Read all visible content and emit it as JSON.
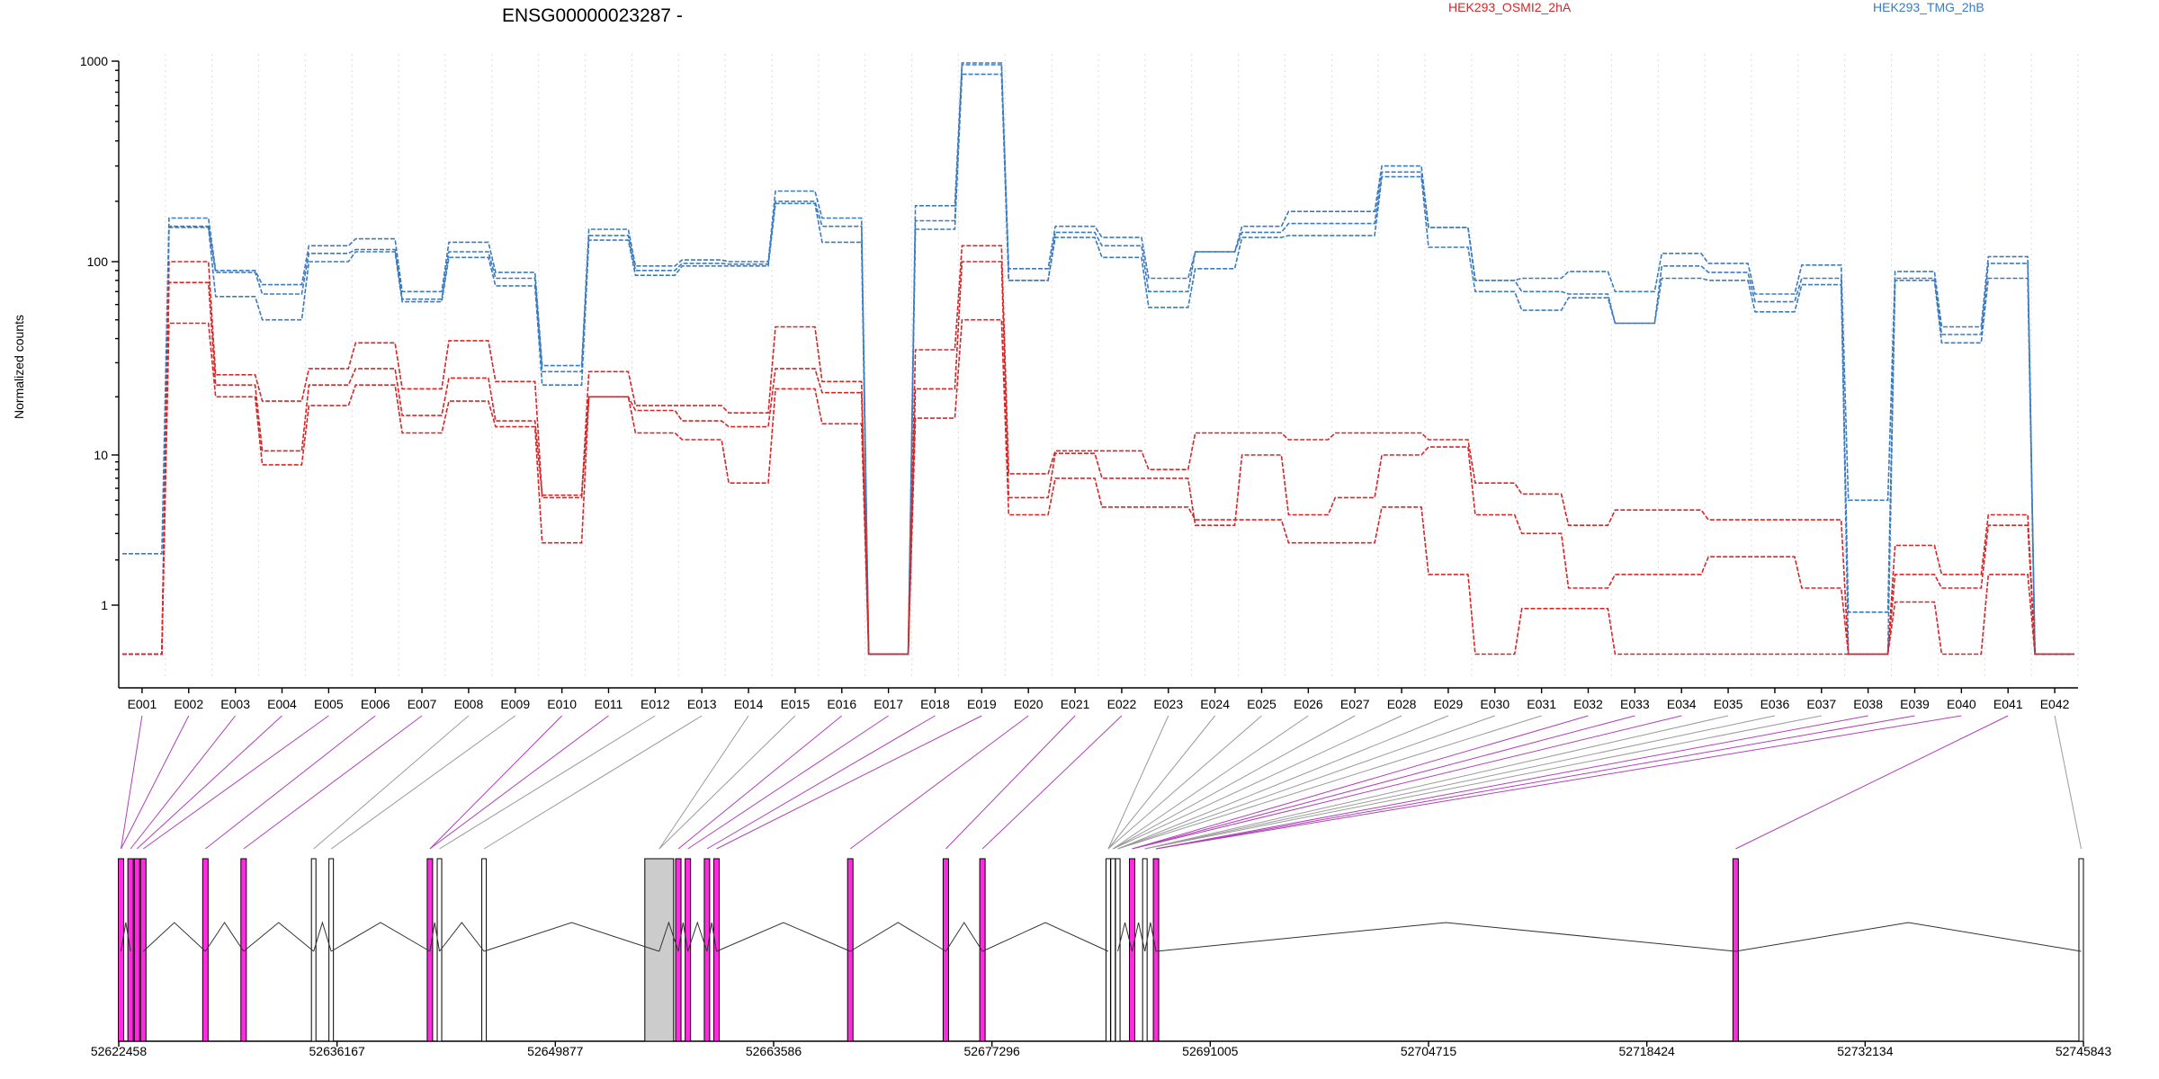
{
  "chart_data": {
    "type": "line",
    "title": "ENSG00000023287 -",
    "ylabel": "Normalized counts",
    "yscale": "log",
    "ylim": [
      0.4,
      1000
    ],
    "yticks": [
      "1",
      "10",
      "100",
      "1000"
    ],
    "grid": "vertical dotted lines at exon boundaries",
    "categories": [
      "E001",
      "E002",
      "E003",
      "E004",
      "E005",
      "E006",
      "E007",
      "E008",
      "E009",
      "E010",
      "E011",
      "E012",
      "E013",
      "E014",
      "E015",
      "E016",
      "E017",
      "E018",
      "E019",
      "E020",
      "E021",
      "E022",
      "E023",
      "E024",
      "E025",
      "E026",
      "E027",
      "E028",
      "E029",
      "E030",
      "E031",
      "E032",
      "E033",
      "E034",
      "E035",
      "E036",
      "E037",
      "E038",
      "E039",
      "E040",
      "E041",
      "E042"
    ],
    "legend": [
      {
        "label": "HEK293_OSMI2_2hA",
        "color": "#d62728",
        "position": "top-center"
      },
      {
        "label": "HEK293_TMG_2hB",
        "color": "#3a7bbf",
        "position": "top-right"
      }
    ],
    "series": [
      {
        "group": "HEK293_TMG_2hB",
        "color": "#3a7bbf",
        "values": [
          2.2,
          165,
          90,
          76,
          120,
          130,
          70,
          125,
          88,
          29,
          145,
          95,
          102,
          100,
          225,
          165,
          0.48,
          190,
          980,
          92,
          150,
          132,
          82,
          112,
          150,
          178,
          178,
          300,
          148,
          80,
          82,
          89,
          70,
          110,
          98,
          68,
          96,
          5,
          89,
          46,
          106,
          0.48
        ]
      },
      {
        "group": "HEK293_TMG_2hB",
        "color": "#3a7bbf",
        "values": [
          0.48,
          150,
          88,
          68,
          110,
          115,
          64,
          112,
          82,
          27,
          135,
          90,
          98,
          97,
          200,
          150,
          0.48,
          160,
          960,
          80,
          140,
          120,
          70,
          112,
          140,
          155,
          155,
          280,
          148,
          80,
          70,
          68,
          48,
          95,
          88,
          62,
          82,
          0.48,
          82,
          42,
          98,
          0.48
        ]
      },
      {
        "group": "HEK293_TMG_2hB",
        "color": "#3a7bbf",
        "values": [
          0.48,
          148,
          66,
          50,
          100,
          112,
          62,
          105,
          75,
          23,
          128,
          85,
          95,
          95,
          195,
          125,
          0.48,
          145,
          860,
          80,
          132,
          105,
          58,
          92,
          132,
          135,
          135,
          265,
          118,
          70,
          56,
          65,
          48,
          82,
          80,
          55,
          76,
          0.9,
          80,
          38,
          82,
          0.48
        ]
      },
      {
        "group": "HEK293_OSMI2_2hA",
        "color": "#d62728",
        "values": [
          0.48,
          100,
          26,
          19,
          28,
          38,
          22,
          39,
          24,
          5.2,
          27,
          18,
          18,
          16.5,
          46,
          24,
          0.48,
          35,
          120,
          7.5,
          10.5,
          10.5,
          8,
          13,
          13,
          12,
          13,
          13,
          12,
          6.5,
          5.5,
          3.4,
          4.3,
          4.3,
          3.7,
          3.7,
          3.7,
          0.48,
          2.5,
          1.6,
          4,
          0.48
        ]
      },
      {
        "group": "HEK293_OSMI2_2hA",
        "color": "#d62728",
        "values": [
          0.48,
          78,
          23,
          10.5,
          23,
          28,
          16,
          25,
          15,
          5.4,
          20,
          17,
          15,
          14,
          28,
          21,
          0.48,
          22,
          100,
          5.2,
          10.2,
          7,
          7,
          3.4,
          10,
          4,
          5.2,
          10,
          11,
          4,
          3,
          1.3,
          1.6,
          1.6,
          2.1,
          2.1,
          1.3,
          0.48,
          1.6,
          1.3,
          3.4,
          0.48
        ]
      },
      {
        "group": "HEK293_OSMI2_2hA",
        "color": "#d62728",
        "values": [
          0.48,
          48,
          20,
          8.6,
          18,
          23,
          13,
          19,
          14,
          2.6,
          20,
          13,
          12,
          6.5,
          22,
          14.5,
          0.48,
          15.5,
          50,
          4,
          7,
          4.5,
          4.5,
          3.7,
          3.7,
          2.6,
          2.6,
          4.5,
          1.6,
          0.48,
          0.95,
          0.95,
          0.48,
          0.48,
          0.48,
          0.48,
          0.48,
          0.48,
          1.05,
          0.48,
          1.6,
          0.48
        ]
      }
    ],
    "gene_model": {
      "xticks": [
        "52622458",
        "52636167",
        "52649877",
        "52663586",
        "52677296",
        "52691005",
        "52704715",
        "52718424",
        "52732134",
        "52745843"
      ],
      "exon_positions": [
        52622600,
        52623200,
        52623600,
        52624000,
        52627900,
        52630300,
        52634700,
        52635800,
        52642000,
        52642600,
        52645400,
        52656400,
        52657600,
        52658200,
        52659400,
        52660000,
        52668400,
        52674400,
        52676700,
        52684600,
        52684900,
        52685200,
        52686100,
        52686900,
        52687600,
        52724000,
        52745700
      ],
      "exon_fill": [
        1,
        1,
        1,
        1,
        1,
        1,
        0,
        0,
        1,
        0,
        0,
        2,
        1,
        1,
        1,
        1,
        1,
        1,
        1,
        0,
        0,
        0,
        1,
        0,
        1,
        1,
        0
      ]
    }
  }
}
